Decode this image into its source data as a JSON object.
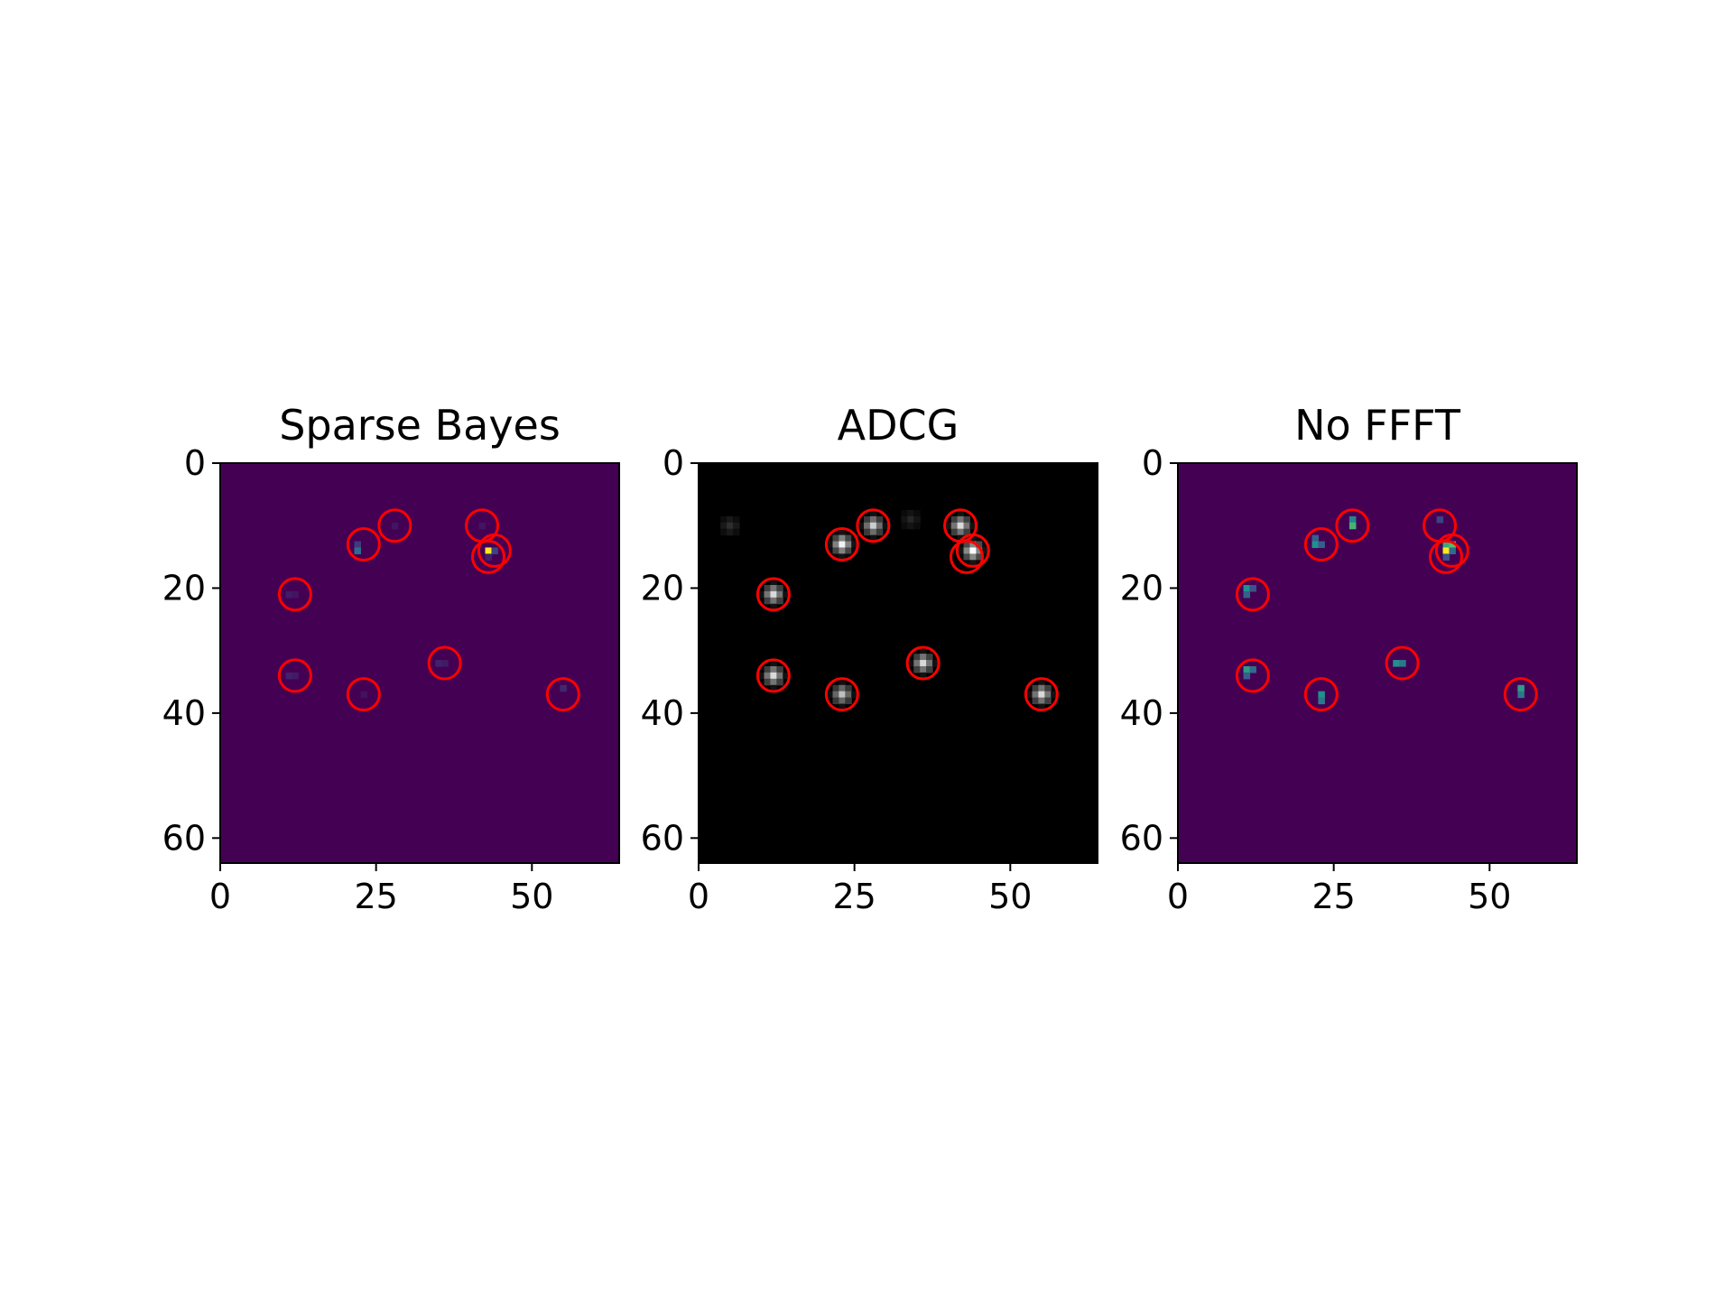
{
  "chart_data": [
    {
      "type": "heatmap",
      "title": "Sparse Bayes",
      "colormap": "viridis",
      "image_size": [
        64,
        64
      ],
      "xlim": [
        0,
        63
      ],
      "ylim": [
        63,
        0
      ],
      "xticks": [
        0,
        25,
        50
      ],
      "yticks": [
        0,
        20,
        40,
        60
      ],
      "circles": [
        [
          12,
          21
        ],
        [
          12,
          34
        ],
        [
          23,
          13
        ],
        [
          23,
          37
        ],
        [
          28,
          10
        ],
        [
          36,
          32
        ],
        [
          42,
          10
        ],
        [
          43,
          15
        ],
        [
          44,
          14
        ],
        [
          55,
          37
        ]
      ],
      "pixels": [
        {
          "x": 11,
          "y": 21,
          "v": 0.08
        },
        {
          "x": 12,
          "y": 21,
          "v": 0.06
        },
        {
          "x": 11,
          "y": 34,
          "v": 0.1
        },
        {
          "x": 12,
          "y": 34,
          "v": 0.08
        },
        {
          "x": 22,
          "y": 13,
          "v": 0.18
        },
        {
          "x": 22,
          "y": 14,
          "v": 0.35
        },
        {
          "x": 23,
          "y": 37,
          "v": 0.05
        },
        {
          "x": 28,
          "y": 10,
          "v": 0.06
        },
        {
          "x": 35,
          "y": 32,
          "v": 0.1
        },
        {
          "x": 36,
          "y": 32,
          "v": 0.08
        },
        {
          "x": 42,
          "y": 10,
          "v": 0.06
        },
        {
          "x": 43,
          "y": 14,
          "v": 1.0
        },
        {
          "x": 44,
          "y": 14,
          "v": 0.2
        },
        {
          "x": 43,
          "y": 15,
          "v": 0.1
        },
        {
          "x": 55,
          "y": 36,
          "v": 0.12
        }
      ]
    },
    {
      "type": "heatmap",
      "title": "ADCG",
      "colormap": "gray",
      "image_size": [
        64,
        64
      ],
      "xlim": [
        0,
        63
      ],
      "ylim": [
        63,
        0
      ],
      "xticks": [
        0,
        25,
        50
      ],
      "yticks": [
        0,
        20,
        40,
        60
      ],
      "circles": [
        [
          12,
          21
        ],
        [
          12,
          34
        ],
        [
          23,
          13
        ],
        [
          23,
          37
        ],
        [
          28,
          10
        ],
        [
          36,
          32
        ],
        [
          42,
          10
        ],
        [
          43,
          15
        ],
        [
          44,
          14
        ],
        [
          55,
          37
        ]
      ],
      "blobs": [
        {
          "x": 12,
          "y": 21,
          "v": 0.85
        },
        {
          "x": 12,
          "y": 34,
          "v": 0.85
        },
        {
          "x": 23,
          "y": 13,
          "v": 0.95
        },
        {
          "x": 23,
          "y": 37,
          "v": 0.75
        },
        {
          "x": 28,
          "y": 10,
          "v": 0.8
        },
        {
          "x": 36,
          "y": 32,
          "v": 0.85
        },
        {
          "x": 42,
          "y": 10,
          "v": 0.85
        },
        {
          "x": 43.5,
          "y": 14,
          "v": 1.0
        },
        {
          "x": 55,
          "y": 37,
          "v": 0.85
        },
        {
          "x": 5,
          "y": 10,
          "v": 0.18
        },
        {
          "x": 34,
          "y": 9,
          "v": 0.15
        }
      ]
    },
    {
      "type": "heatmap",
      "title": "No FFFT",
      "colormap": "viridis",
      "image_size": [
        64,
        64
      ],
      "xlim": [
        0,
        63
      ],
      "ylim": [
        63,
        0
      ],
      "xticks": [
        0,
        25,
        50
      ],
      "yticks": [
        0,
        20,
        40,
        60
      ],
      "circles": [
        [
          12,
          21
        ],
        [
          12,
          34
        ],
        [
          23,
          13
        ],
        [
          23,
          37
        ],
        [
          28,
          10
        ],
        [
          36,
          32
        ],
        [
          42,
          10
        ],
        [
          43,
          15
        ],
        [
          44,
          14
        ],
        [
          55,
          37
        ]
      ],
      "pixels": [
        {
          "x": 11,
          "y": 20,
          "v": 0.5
        },
        {
          "x": 11,
          "y": 21,
          "v": 0.3
        },
        {
          "x": 12,
          "y": 20,
          "v": 0.25
        },
        {
          "x": 11,
          "y": 33,
          "v": 0.55
        },
        {
          "x": 12,
          "y": 33,
          "v": 0.35
        },
        {
          "x": 11,
          "y": 34,
          "v": 0.3
        },
        {
          "x": 22,
          "y": 12,
          "v": 0.3
        },
        {
          "x": 22,
          "y": 13,
          "v": 0.5
        },
        {
          "x": 23,
          "y": 13,
          "v": 0.3
        },
        {
          "x": 23,
          "y": 37,
          "v": 0.5
        },
        {
          "x": 23,
          "y": 38,
          "v": 0.4
        },
        {
          "x": 28,
          "y": 9,
          "v": 0.45
        },
        {
          "x": 28,
          "y": 10,
          "v": 0.65
        },
        {
          "x": 35,
          "y": 32,
          "v": 0.5
        },
        {
          "x": 36,
          "y": 32,
          "v": 0.4
        },
        {
          "x": 42,
          "y": 9,
          "v": 0.2
        },
        {
          "x": 43,
          "y": 13,
          "v": 0.6
        },
        {
          "x": 43,
          "y": 14,
          "v": 1.0
        },
        {
          "x": 44,
          "y": 13,
          "v": 0.7
        },
        {
          "x": 44,
          "y": 14,
          "v": 0.35
        },
        {
          "x": 43,
          "y": 15,
          "v": 0.25
        },
        {
          "x": 55,
          "y": 36,
          "v": 0.55
        },
        {
          "x": 55,
          "y": 37,
          "v": 0.4
        }
      ]
    }
  ]
}
